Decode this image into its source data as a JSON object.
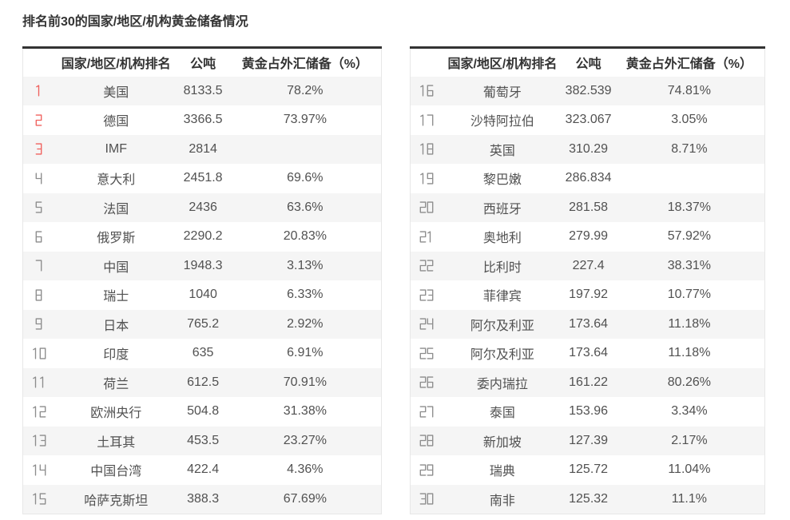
{
  "title": "排名前30的国家/地区/机构黄金储备情况",
  "colors": {
    "rank_top3": "#f0605d",
    "rank_gray": "#8c8c8c",
    "row_alt_bg": "#f5f5f5",
    "border_dark": "#333333",
    "border_light": "#e7e7e7",
    "text_dark": "#333333",
    "text_body": "#515151"
  },
  "table": {
    "columns": [
      "",
      "国家/地区/机构排名",
      "公吨",
      "黄金占外汇储备（%）"
    ],
    "left_rows": [
      [
        "1",
        "美国",
        "8133.5",
        "78.2%"
      ],
      [
        "2",
        "德国",
        "3366.5",
        "73.97%"
      ],
      [
        "3",
        "IMF",
        "2814",
        ""
      ],
      [
        "4",
        "意大利",
        "2451.8",
        "69.6%"
      ],
      [
        "5",
        "法国",
        "2436",
        "63.6%"
      ],
      [
        "6",
        "俄罗斯",
        "2290.2",
        "20.83%"
      ],
      [
        "7",
        "中国",
        "1948.3",
        "3.13%"
      ],
      [
        "8",
        "瑞士",
        "1040",
        "6.33%"
      ],
      [
        "9",
        "日本",
        "765.2",
        "2.92%"
      ],
      [
        "10",
        "印度",
        "635",
        "6.91%"
      ],
      [
        "11",
        "荷兰",
        "612.5",
        "70.91%"
      ],
      [
        "12",
        "欧洲央行",
        "504.8",
        "31.38%"
      ],
      [
        "13",
        "土耳其",
        "453.5",
        "23.27%"
      ],
      [
        "14",
        "中国台湾",
        "422.4",
        "4.36%"
      ],
      [
        "15",
        "哈萨克斯坦",
        "388.3",
        "67.69%"
      ]
    ],
    "right_rows": [
      [
        "16",
        "葡萄牙",
        "382.539",
        "74.81%"
      ],
      [
        "17",
        "沙特阿拉伯",
        "323.067",
        "3.05%"
      ],
      [
        "18",
        "英国",
        "310.29",
        "8.71%"
      ],
      [
        "19",
        "黎巴嫩",
        "286.834",
        ""
      ],
      [
        "20",
        "西班牙",
        "281.58",
        "18.37%"
      ],
      [
        "21",
        "奥地利",
        "279.99",
        "57.92%"
      ],
      [
        "22",
        "比利时",
        "227.4",
        "38.31%"
      ],
      [
        "23",
        "菲律宾",
        "197.92",
        "10.77%"
      ],
      [
        "24",
        "阿尔及利亚",
        "173.64",
        "11.18%"
      ],
      [
        "25",
        "阿尔及利亚",
        "173.64",
        "11.18%"
      ],
      [
        "26",
        "委内瑞拉",
        "161.22",
        "80.26%"
      ],
      [
        "27",
        "泰国",
        "153.96",
        "3.34%"
      ],
      [
        "28",
        "新加坡",
        "127.39",
        "2.17%"
      ],
      [
        "29",
        "瑞典",
        "125.72",
        "11.04%"
      ],
      [
        "30",
        "南非",
        "125.32",
        "11.1%"
      ]
    ]
  }
}
